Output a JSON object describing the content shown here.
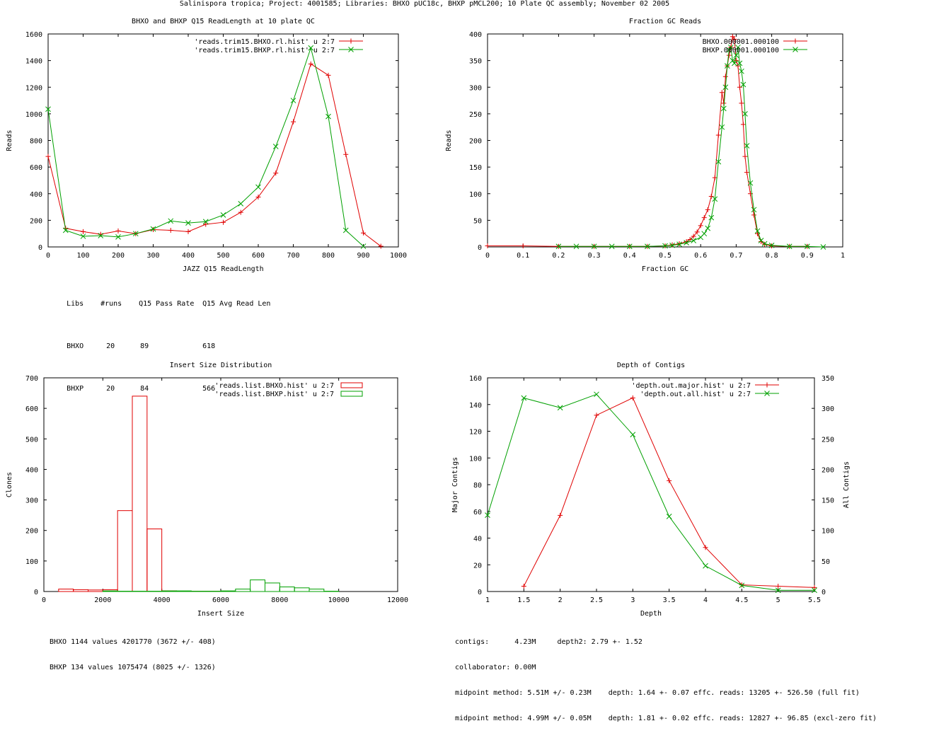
{
  "page": {
    "title": "Salinispora tropica; Project: 4001585; Libraries: BHXO pUC18c, BHXP pMCL200; 10 Plate QC assembly; November 02 2005"
  },
  "colors": {
    "red": "#e00000",
    "green": "#00a000",
    "axis": "#000000"
  },
  "chart_data": [
    {
      "id": "readlength",
      "type": "line",
      "title": "BHXO and BHXP Q15 ReadLength at 10 plate QC",
      "xlabel": "JAZZ Q15 ReadLength",
      "ylabel": "Reads",
      "xlim": [
        0,
        1000
      ],
      "ylim": [
        0,
        1600
      ],
      "xticks": [
        0,
        100,
        200,
        300,
        400,
        500,
        600,
        700,
        800,
        900,
        1000
      ],
      "yticks": [
        0,
        200,
        400,
        600,
        800,
        1000,
        1200,
        1400,
        1600
      ],
      "legend_position": "top-right",
      "series": [
        {
          "name": "'reads.trim15.BHXO.rl.hist' u 2:7",
          "color": "red",
          "marker": "plus",
          "x": [
            0,
            50,
            100,
            150,
            200,
            250,
            300,
            350,
            400,
            450,
            500,
            550,
            600,
            650,
            700,
            750,
            800,
            850,
            900,
            950
          ],
          "y": [
            680,
            140,
            115,
            95,
            120,
            100,
            130,
            125,
            115,
            170,
            185,
            260,
            375,
            555,
            940,
            1375,
            1290,
            695,
            105,
            5
          ]
        },
        {
          "name": "'reads.trim15.BHXP.rl.hist' u 2:7",
          "color": "green",
          "marker": "x",
          "x": [
            0,
            50,
            100,
            150,
            200,
            250,
            300,
            350,
            400,
            450,
            500,
            550,
            600,
            650,
            700,
            750,
            800,
            850,
            900
          ],
          "y": [
            1035,
            125,
            80,
            85,
            75,
            100,
            135,
            195,
            180,
            190,
            240,
            325,
            450,
            755,
            1100,
            1495,
            980,
            125,
            5
          ]
        }
      ],
      "table": {
        "headers": [
          "Libs",
          "#runs",
          "Q15 Pass Rate",
          "Q15 Avg Read Len"
        ],
        "rows": [
          [
            "BHXO",
            "20",
            "89",
            "618"
          ],
          [
            "BHXP",
            "20",
            "84",
            "566"
          ]
        ]
      }
    },
    {
      "id": "gc",
      "type": "line",
      "title": "Fraction GC Reads",
      "xlabel": "Fraction GC",
      "ylabel": "Reads",
      "xlim": [
        0,
        1
      ],
      "ylim": [
        0,
        400
      ],
      "xticks": [
        0,
        0.1,
        0.2,
        0.3,
        0.4,
        0.5,
        0.6,
        0.7,
        0.8,
        0.9,
        1
      ],
      "yticks": [
        0,
        50,
        100,
        150,
        200,
        250,
        300,
        350,
        400
      ],
      "legend_position": "top-right",
      "series": [
        {
          "name": "BHXO.000001.000100",
          "color": "red",
          "marker": "plus",
          "x": [
            0,
            0.1,
            0.2,
            0.3,
            0.4,
            0.45,
            0.5,
            0.52,
            0.54,
            0.56,
            0.57,
            0.58,
            0.59,
            0.6,
            0.61,
            0.62,
            0.63,
            0.64,
            0.65,
            0.66,
            0.665,
            0.67,
            0.675,
            0.68,
            0.685,
            0.69,
            0.695,
            0.7,
            0.705,
            0.71,
            0.715,
            0.72,
            0.725,
            0.73,
            0.74,
            0.75,
            0.76,
            0.77,
            0.78,
            0.8,
            0.85,
            0.9
          ],
          "y": [
            2,
            2,
            1,
            1,
            1,
            1,
            2,
            4,
            6,
            10,
            14,
            20,
            28,
            40,
            55,
            70,
            95,
            130,
            210,
            290,
            270,
            320,
            340,
            360,
            375,
            395,
            390,
            350,
            340,
            300,
            270,
            230,
            170,
            140,
            100,
            60,
            25,
            10,
            5,
            2,
            1,
            1
          ]
        },
        {
          "name": "BHXP.000001.000100",
          "color": "green",
          "marker": "x",
          "x": [
            0.2,
            0.25,
            0.3,
            0.35,
            0.4,
            0.45,
            0.5,
            0.52,
            0.54,
            0.56,
            0.58,
            0.6,
            0.61,
            0.62,
            0.63,
            0.64,
            0.65,
            0.66,
            0.665,
            0.67,
            0.675,
            0.68,
            0.685,
            0.69,
            0.695,
            0.7,
            0.705,
            0.71,
            0.715,
            0.72,
            0.725,
            0.73,
            0.74,
            0.75,
            0.76,
            0.77,
            0.78,
            0.8,
            0.85,
            0.9,
            0.945
          ],
          "y": [
            1,
            1,
            1,
            1,
            1,
            1,
            2,
            3,
            5,
            8,
            12,
            18,
            25,
            35,
            55,
            90,
            160,
            225,
            260,
            300,
            340,
            370,
            375,
            350,
            345,
            360,
            375,
            345,
            330,
            305,
            250,
            190,
            120,
            70,
            30,
            12,
            6,
            3,
            1,
            1,
            0
          ]
        }
      ]
    },
    {
      "id": "insert",
      "type": "bar",
      "title": "Insert Size Distribution",
      "xlabel": "Insert Size",
      "ylabel": "Clones",
      "xlim": [
        0,
        12000
      ],
      "ylim": [
        0,
        700
      ],
      "xticks": [
        0,
        2000,
        4000,
        6000,
        8000,
        10000,
        12000
      ],
      "yticks": [
        0,
        100,
        200,
        300,
        400,
        500,
        600,
        700
      ],
      "legend_position": "top-right",
      "bin_width": 500,
      "series": [
        {
          "name": "'reads.list.BHXO.hist' u 2:7",
          "color": "red",
          "bins": [
            750,
            1250,
            1750,
            2250,
            2750,
            3250,
            3750,
            4250,
            4750,
            5250,
            5750,
            6250,
            6750
          ],
          "values": [
            8,
            6,
            5,
            6,
            265,
            640,
            205,
            2,
            1,
            1,
            1,
            1,
            0
          ]
        },
        {
          "name": "'reads.list.BHXP.hist' u 2:7",
          "color": "green",
          "bins": [
            2250,
            2750,
            3250,
            3750,
            4250,
            4750,
            5250,
            5750,
            6250,
            6750,
            7250,
            7750,
            8250,
            8750,
            9250,
            9750
          ],
          "values": [
            2,
            1,
            1,
            1,
            2,
            2,
            1,
            1,
            2,
            8,
            38,
            28,
            15,
            12,
            8,
            1
          ]
        }
      ],
      "stats": [
        "BHXO 1144 values 4201770 (3672 +/- 408)",
        "BHXP 134 values 1075474 (8025 +/- 1326)"
      ]
    },
    {
      "id": "depth",
      "type": "line",
      "title": "Depth of Contigs",
      "xlabel": "Depth",
      "ylabel": "Major Contigs",
      "y2label": "All Contigs",
      "xlim": [
        1,
        5.5
      ],
      "ylim": [
        0,
        160
      ],
      "y2lim": [
        0,
        350
      ],
      "xticks": [
        1,
        1.5,
        2,
        2.5,
        3,
        3.5,
        4,
        4.5,
        5,
        5.5
      ],
      "yticks": [
        0,
        20,
        40,
        60,
        80,
        100,
        120,
        140,
        160
      ],
      "y2ticks": [
        0,
        50,
        100,
        150,
        200,
        250,
        300,
        350
      ],
      "legend_position": "top-right",
      "series": [
        {
          "name": "'depth.out.major.hist' u 2:7",
          "color": "red",
          "marker": "plus",
          "axis": "y1",
          "x": [
            1.5,
            2,
            2.5,
            3,
            3.5,
            4,
            4.5,
            5,
            5.5
          ],
          "y": [
            4,
            57,
            132,
            145,
            83,
            33,
            5,
            4,
            3
          ]
        },
        {
          "name": "'depth.out.all.hist' u 2:7",
          "color": "green",
          "marker": "x",
          "axis": "y2",
          "x": [
            1,
            1.5,
            2,
            2.5,
            3,
            3.5,
            4,
            4.5,
            5,
            5.5
          ],
          "y": [
            125,
            317,
            301,
            323,
            257,
            123,
            42,
            10,
            2,
            2
          ]
        }
      ],
      "stats": [
        "contigs:      4.23M     depth2: 2.79 +- 1.52",
        "collaborator: 0.00M",
        "midpoint method: 5.51M +/- 0.23M    depth: 1.64 +- 0.07 effc. reads: 13205 +- 526.50 (full fit)",
        "midpoint method: 4.99M +/- 0.05M    depth: 1.81 +- 0.02 effc. reads: 12827 +- 96.85 (excl-zero fit)"
      ]
    }
  ]
}
